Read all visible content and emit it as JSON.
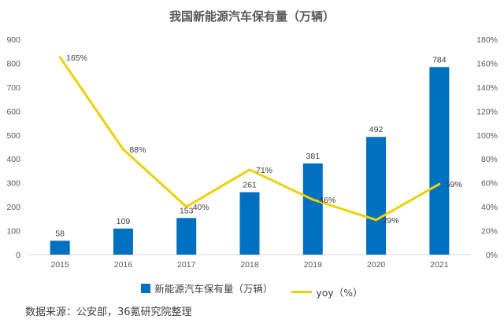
{
  "chart_data": {
    "type": "bar+line",
    "title": "我国新能源汽车保有量（万辆）",
    "categories": [
      "2015",
      "2016",
      "2017",
      "2018",
      "2019",
      "2020",
      "2021"
    ],
    "series": [
      {
        "name": "新能源汽车保有量（万辆）",
        "type": "bar",
        "axis": "left",
        "values": [
          58,
          109,
          153,
          261,
          381,
          492,
          784
        ],
        "labels": [
          "58",
          "109",
          "153",
          "261",
          "381",
          "492",
          "784"
        ]
      },
      {
        "name": "yoy（%）",
        "type": "line",
        "axis": "right",
        "values": [
          165,
          88,
          40,
          71,
          46,
          29,
          59
        ],
        "labels": [
          "165%",
          "88%",
          "40%",
          "71%",
          "46%",
          "29%",
          "59%"
        ]
      }
    ],
    "y_left": {
      "min": 0,
      "max": 900,
      "ticks": [
        "0",
        "100",
        "200",
        "300",
        "400",
        "500",
        "600",
        "700",
        "800",
        "900"
      ]
    },
    "y_right": {
      "min": 0,
      "max": 180,
      "ticks": [
        "0%",
        "20%",
        "40%",
        "60%",
        "80%",
        "100%",
        "120%",
        "140%",
        "160%",
        "180%"
      ]
    },
    "grid": false,
    "legend_position": "bottom"
  },
  "colors": {
    "bar": "#0070c0",
    "line": "#f0d000"
  },
  "source": "数据来源：公安部，36氪研究院整理"
}
